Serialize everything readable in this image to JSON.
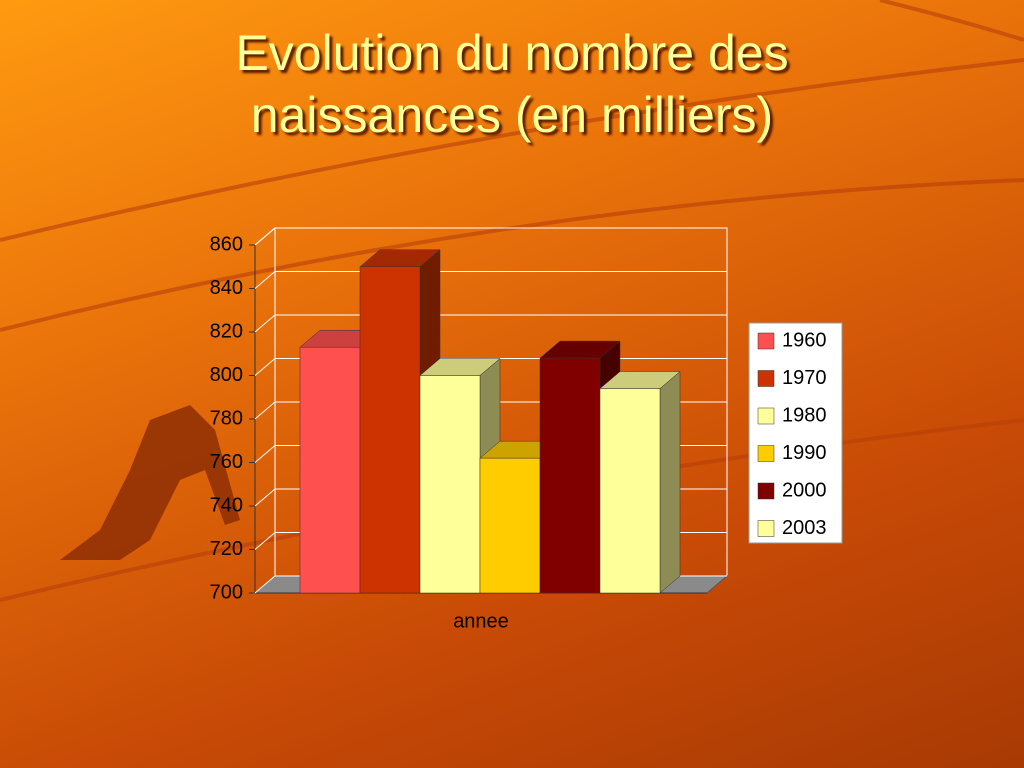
{
  "chart_data": {
    "type": "bar3d",
    "title": "Evolution du nombre des naissances (en milliers)",
    "categories": [
      "annee"
    ],
    "series": [
      {
        "name": "1960",
        "color": "#ff5050",
        "values": [
          813
        ]
      },
      {
        "name": "1970",
        "color": "#cc3300",
        "values": [
          850
        ]
      },
      {
        "name": "1980",
        "color": "#ffff99",
        "values": [
          800
        ]
      },
      {
        "name": "1990",
        "color": "#ffcc00",
        "values": [
          762
        ]
      },
      {
        "name": "2000",
        "color": "#800000",
        "values": [
          808
        ]
      },
      {
        "name": "2003",
        "color": "#ffff99",
        "values": [
          794
        ]
      }
    ],
    "ylim": [
      700,
      860
    ],
    "yticks": [
      700,
      720,
      740,
      760,
      780,
      800,
      820,
      840,
      860
    ],
    "grid": true,
    "legend": "right"
  }
}
